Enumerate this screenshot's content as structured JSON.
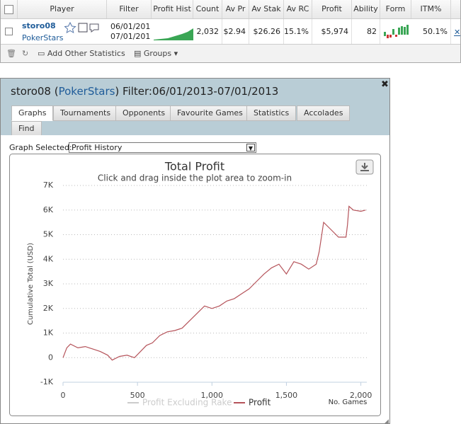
{
  "table": {
    "headers": [
      "Player",
      "Filter",
      "Profit Hist",
      "Count",
      "Av Pr",
      "Av Stak",
      "Av RC",
      "Profit",
      "Ability",
      "Form",
      "ITM%"
    ],
    "row": {
      "player": "storo08",
      "site": "PokerStars",
      "filter": [
        "06/01/201",
        "07/01/201"
      ],
      "count": "2,032",
      "av_profit": "$2.94",
      "av_stake": "$26.26",
      "av_roi": "15.1%",
      "profit": "$5,974",
      "ability": "82",
      "itm": "50.1%"
    }
  },
  "toolbar": {
    "add_stats": "Add Other Statistics",
    "groups": "Groups"
  },
  "dialog": {
    "title": [
      "storo08 (",
      "PokerStars",
      ") Filter:06/01/2013-07/01/2013"
    ],
    "tabs": [
      "Graphs",
      "Tournaments",
      "Opponents",
      "Favourite Games",
      "Statistics",
      "Accolades",
      "Find"
    ],
    "graph_selected_label": "Graph Selected:",
    "graph_selected": "Profit History"
  },
  "chart_data": {
    "type": "line",
    "title": "Total Profit",
    "subtitle": "Click and drag inside the plot area to zoom-in",
    "y_label": "Cumulative Total (USD)",
    "x_label": "No. Games",
    "x": [
      0,
      25,
      50,
      100,
      150,
      200,
      250,
      300,
      330,
      380,
      430,
      480,
      520,
      560,
      600,
      650,
      700,
      750,
      800,
      850,
      900,
      950,
      1000,
      1050,
      1100,
      1150,
      1200,
      1250,
      1300,
      1350,
      1400,
      1450,
      1500,
      1550,
      1600,
      1650,
      1700,
      1720,
      1750,
      1800,
      1850,
      1900,
      1910,
      1920,
      1950,
      2000,
      2032
    ],
    "series": [
      {
        "name": "Profit Excluding Rake",
        "color": "#cccccc",
        "visible": false,
        "values": [
          null,
          null,
          null,
          null,
          null,
          null,
          null,
          null,
          null,
          null,
          null,
          null,
          null,
          null,
          null,
          null,
          null,
          null,
          null,
          null,
          null,
          null,
          null,
          null,
          null,
          null,
          null,
          null,
          null,
          null,
          null,
          null,
          null,
          null,
          null,
          null,
          null,
          null,
          null,
          null,
          null,
          null,
          null,
          null,
          null,
          null,
          null
        ]
      },
      {
        "name": "Profit",
        "color": "#b5535a",
        "visible": true,
        "values": [
          0,
          400,
          550,
          400,
          450,
          350,
          250,
          100,
          -100,
          50,
          100,
          0,
          250,
          500,
          600,
          900,
          1050,
          1100,
          1200,
          1500,
          1800,
          2100,
          2000,
          2100,
          2300,
          2400,
          2600,
          2800,
          3100,
          3400,
          3650,
          3800,
          3400,
          3900,
          3800,
          3600,
          3800,
          4300,
          5500,
          5200,
          4900,
          4900,
          5400,
          6150,
          6000,
          5950,
          6000
        ]
      }
    ],
    "xlim": [
      0,
      2040
    ],
    "ylim": [
      -1000,
      7000
    ],
    "xticks": [
      0,
      500,
      {
        "value": 1000,
        "label": "1,000"
      },
      {
        "value": 1500,
        "label": "1,500"
      },
      {
        "value": 2000,
        "label": "2,000"
      }
    ],
    "yticks": [
      {
        "value": -1000,
        "label": "-1K"
      },
      0,
      {
        "value": 1000,
        "label": "1K"
      },
      {
        "value": 2000,
        "label": "2K"
      },
      {
        "value": 3000,
        "label": "3K"
      },
      {
        "value": 4000,
        "label": "4K"
      },
      {
        "value": 5000,
        "label": "5K"
      },
      {
        "value": 6000,
        "label": "6K"
      },
      {
        "value": 7000,
        "label": "7K"
      }
    ],
    "grid": true
  }
}
